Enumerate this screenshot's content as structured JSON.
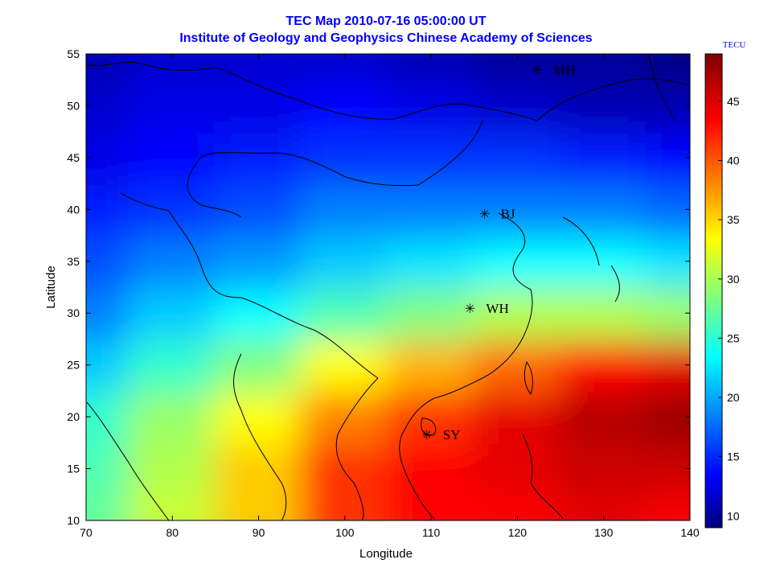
{
  "header": {
    "title_line1": "TEC Map 2010-07-16 05:00:00 UT",
    "title_line2": "Institute of Geology and Geophysics Chinese Academy of Sciences"
  },
  "colors": {
    "title": "#0000ff",
    "axes_text": "#000000",
    "colormap": "jet"
  },
  "chart_data": {
    "type": "heatmap",
    "xlabel": "Longitude",
    "ylabel": "Latitude",
    "xlim": [
      70,
      140
    ],
    "ylim": [
      10,
      55
    ],
    "x_ticks": [
      70,
      80,
      90,
      100,
      110,
      120,
      130,
      140
    ],
    "y_ticks": [
      10,
      15,
      20,
      25,
      30,
      35,
      40,
      45,
      50,
      55
    ],
    "colorbar": {
      "label": "TECU",
      "range": [
        9,
        49
      ],
      "ticks": [
        10,
        15,
        20,
        25,
        30,
        35,
        40,
        45
      ],
      "colormap": "jet"
    },
    "field_estimate": {
      "description_units": "TECU",
      "lat_samples": [
        10,
        15,
        20,
        25,
        30,
        35,
        40,
        45,
        50,
        55
      ],
      "lon_samples": [
        70,
        80,
        90,
        100,
        110,
        120,
        130,
        140
      ],
      "values": [
        [
          28,
          32,
          36,
          42,
          44,
          44,
          45,
          44
        ],
        [
          27,
          31,
          36,
          42,
          44,
          45,
          46,
          46
        ],
        [
          26,
          30,
          34,
          39,
          42,
          45,
          47,
          48
        ],
        [
          22,
          26,
          29,
          34,
          37,
          40,
          44,
          45
        ],
        [
          19,
          22,
          24,
          27,
          29,
          31,
          31,
          30
        ],
        [
          17,
          19,
          20,
          22,
          23,
          24,
          24,
          23
        ],
        [
          15,
          16,
          17,
          19,
          19,
          19,
          19,
          18
        ],
        [
          13,
          14,
          15,
          16,
          16,
          16,
          15,
          14
        ],
        [
          12,
          13,
          13,
          14,
          13,
          12,
          11,
          11
        ],
        [
          11,
          12,
          12,
          12,
          11,
          10,
          10,
          9
        ]
      ]
    },
    "stations": [
      {
        "name": "MH",
        "lon": 122.3,
        "lat": 53.5
      },
      {
        "name": "BJ",
        "lon": 116.2,
        "lat": 39.6
      },
      {
        "name": "WH",
        "lon": 114.5,
        "lat": 30.5
      },
      {
        "name": "SY",
        "lon": 109.5,
        "lat": 18.3
      }
    ],
    "grid": false,
    "legend": "colorbar-right"
  }
}
